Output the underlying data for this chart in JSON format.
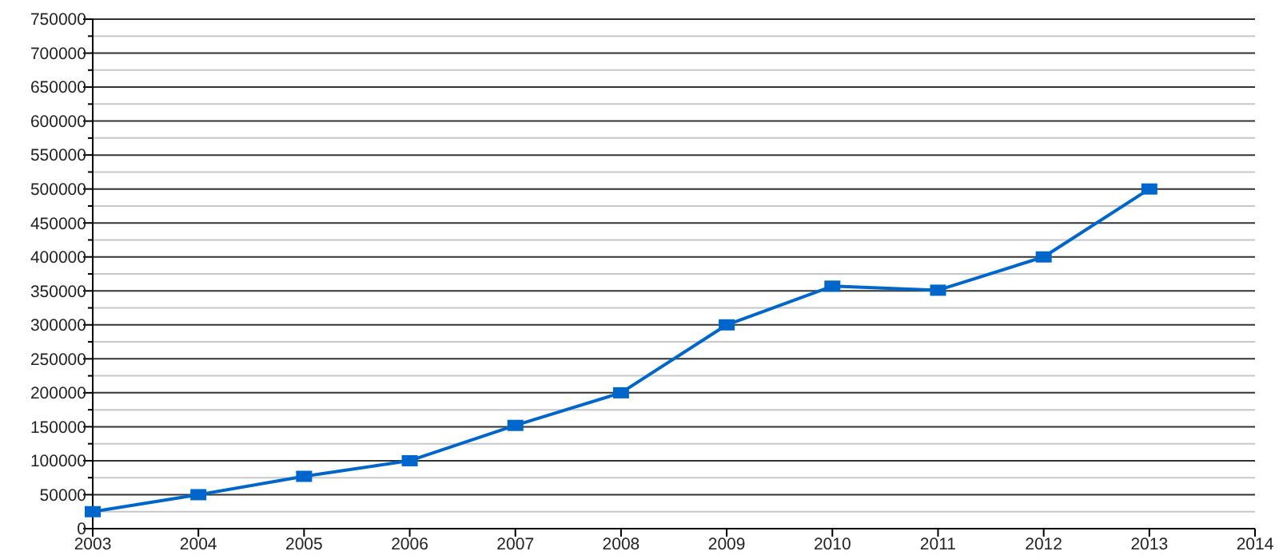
{
  "chart_data": {
    "type": "line",
    "x": [
      2003,
      2004,
      2005,
      2006,
      2007,
      2008,
      2009,
      2010,
      2011,
      2012,
      2013
    ],
    "series": [
      {
        "color": "#0066cc",
        "values": [
          25000,
          50000,
          77000,
          100000,
          152000,
          200000,
          300000,
          357000,
          351000,
          400000,
          500000
        ]
      }
    ],
    "xlim": [
      2003,
      2014
    ],
    "xticks": [
      2003,
      2004,
      2005,
      2006,
      2007,
      2008,
      2009,
      2010,
      2011,
      2012,
      2013,
      2014
    ],
    "ylim": [
      0,
      750000
    ],
    "yticks": [
      0,
      {
        "value": 25000,
        "label": null
      },
      50000,
      {
        "value": 75000,
        "label": null
      },
      100000,
      {
        "value": 125000,
        "label": null
      },
      150000,
      {
        "value": 175000,
        "label": null
      },
      200000,
      {
        "value": 225000,
        "label": null
      },
      250000,
      {
        "value": 275000,
        "label": null
      },
      300000,
      {
        "value": 325000,
        "label": null
      },
      350000,
      {
        "value": 375000,
        "label": null
      },
      400000,
      {
        "value": 425000,
        "label": null
      },
      450000,
      {
        "value": 475000,
        "label": null
      },
      500000,
      {
        "value": 525000,
        "label": null
      },
      550000,
      {
        "value": 575000,
        "label": null
      },
      600000,
      {
        "value": 625000,
        "label": null
      },
      650000,
      {
        "value": 675000,
        "label": null
      },
      700000,
      {
        "value": 725000,
        "label": null
      },
      750000
    ],
    "grid": true,
    "marker": "square",
    "line_style": "solid"
  }
}
